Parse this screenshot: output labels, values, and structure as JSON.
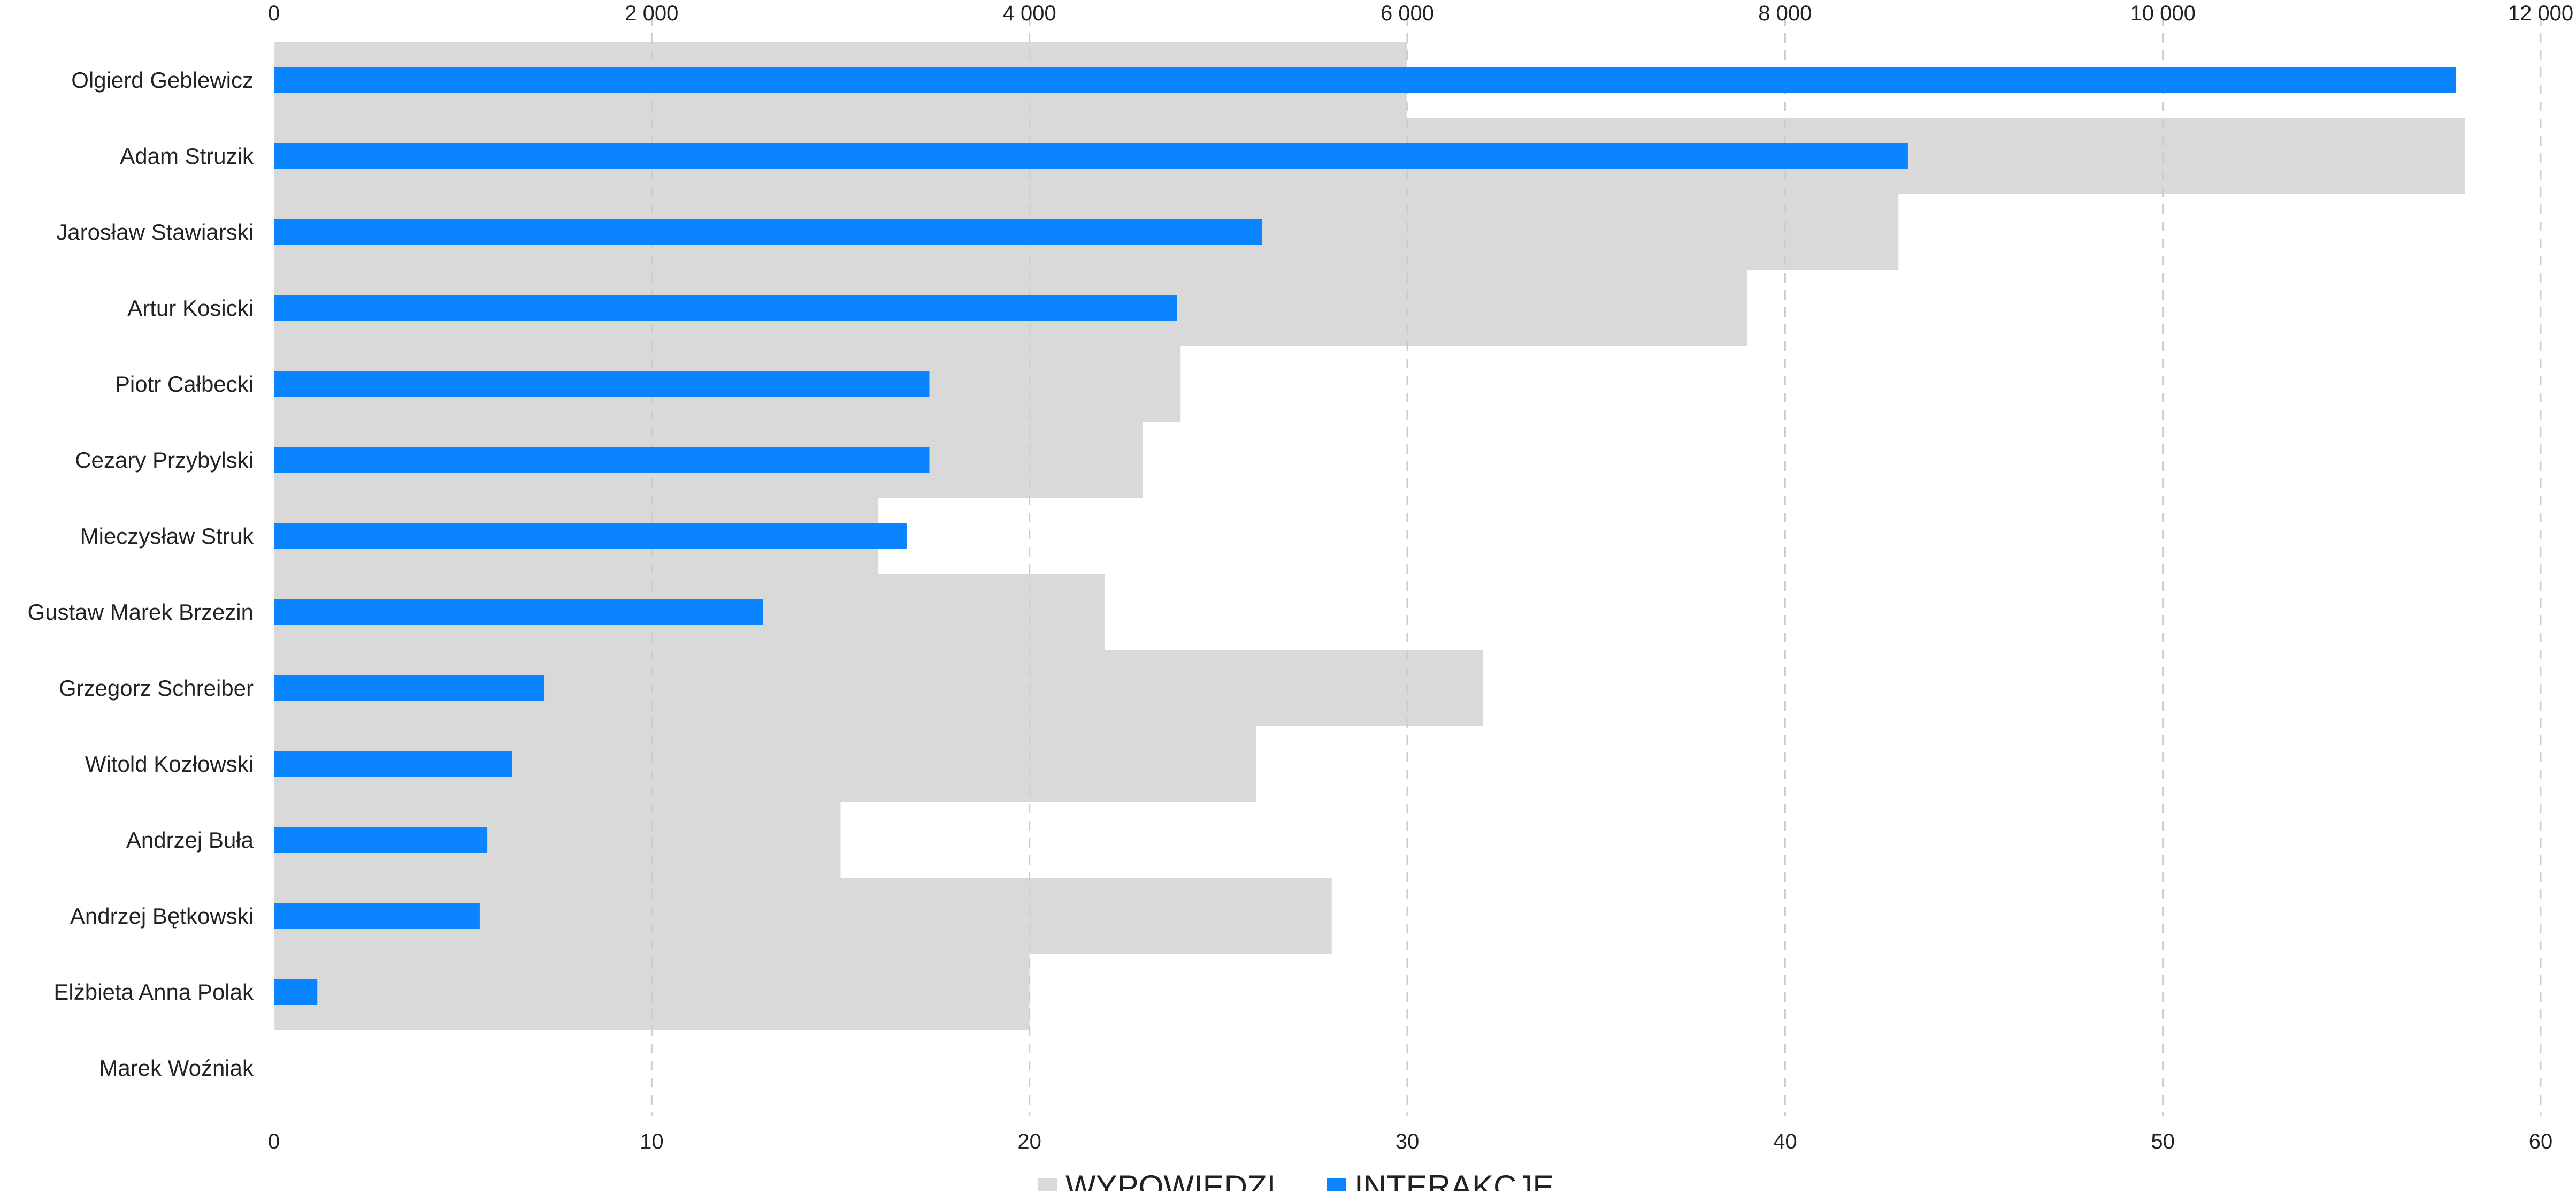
{
  "chart_data": {
    "type": "bar",
    "orientation": "horizontal",
    "categories": [
      "Olgierd Geblewicz",
      "Adam Struzik",
      "Jarosław Stawiarski",
      "Artur Kosicki",
      "Piotr Całbecki",
      "Cezary Przybylski",
      "Mieczysław Struk",
      "Gustaw Marek Brzezin",
      "Grzegorz Schreiber",
      "Witold Kozłowski",
      "Andrzej Buła",
      "Andrzej Bętkowski",
      "Elżbieta Anna Polak",
      "Marek Woźniak"
    ],
    "series": [
      {
        "name": "WYPOWIEDZI",
        "axis": "bottom",
        "color": "#d9d9d9",
        "values": [
          30,
          58,
          43,
          39,
          24,
          23,
          16,
          22,
          32,
          26,
          15,
          28,
          20,
          0
        ]
      },
      {
        "name": "INTERAKCJE",
        "axis": "top",
        "color": "#0a84ff",
        "values": [
          11550,
          8650,
          5230,
          4780,
          3470,
          3470,
          3350,
          2590,
          1430,
          1260,
          1130,
          1090,
          230,
          0
        ]
      }
    ],
    "axes": {
      "top": {
        "min": 0,
        "max": 12000,
        "ticks": [
          0,
          2000,
          4000,
          6000,
          8000,
          10000,
          12000
        ],
        "tick_labels": [
          "0",
          "2 000",
          "4 000",
          "6 000",
          "8 000",
          "10 000",
          "12 000"
        ]
      },
      "bottom": {
        "min": 0,
        "max": 60,
        "ticks": [
          0,
          10,
          20,
          30,
          40,
          50,
          60
        ],
        "tick_labels": [
          "0",
          "10",
          "20",
          "30",
          "40",
          "50",
          "60"
        ]
      }
    },
    "grid": true,
    "grid_style": "dashed vertical",
    "legend": {
      "position": "bottom-center",
      "items": [
        {
          "label": "WYPOWIEDZI",
          "color": "#d9d9d9"
        },
        {
          "label": "INTERAKCJE",
          "color": "#0a84ff"
        }
      ]
    },
    "title": "",
    "xlabel": "",
    "ylabel": ""
  }
}
